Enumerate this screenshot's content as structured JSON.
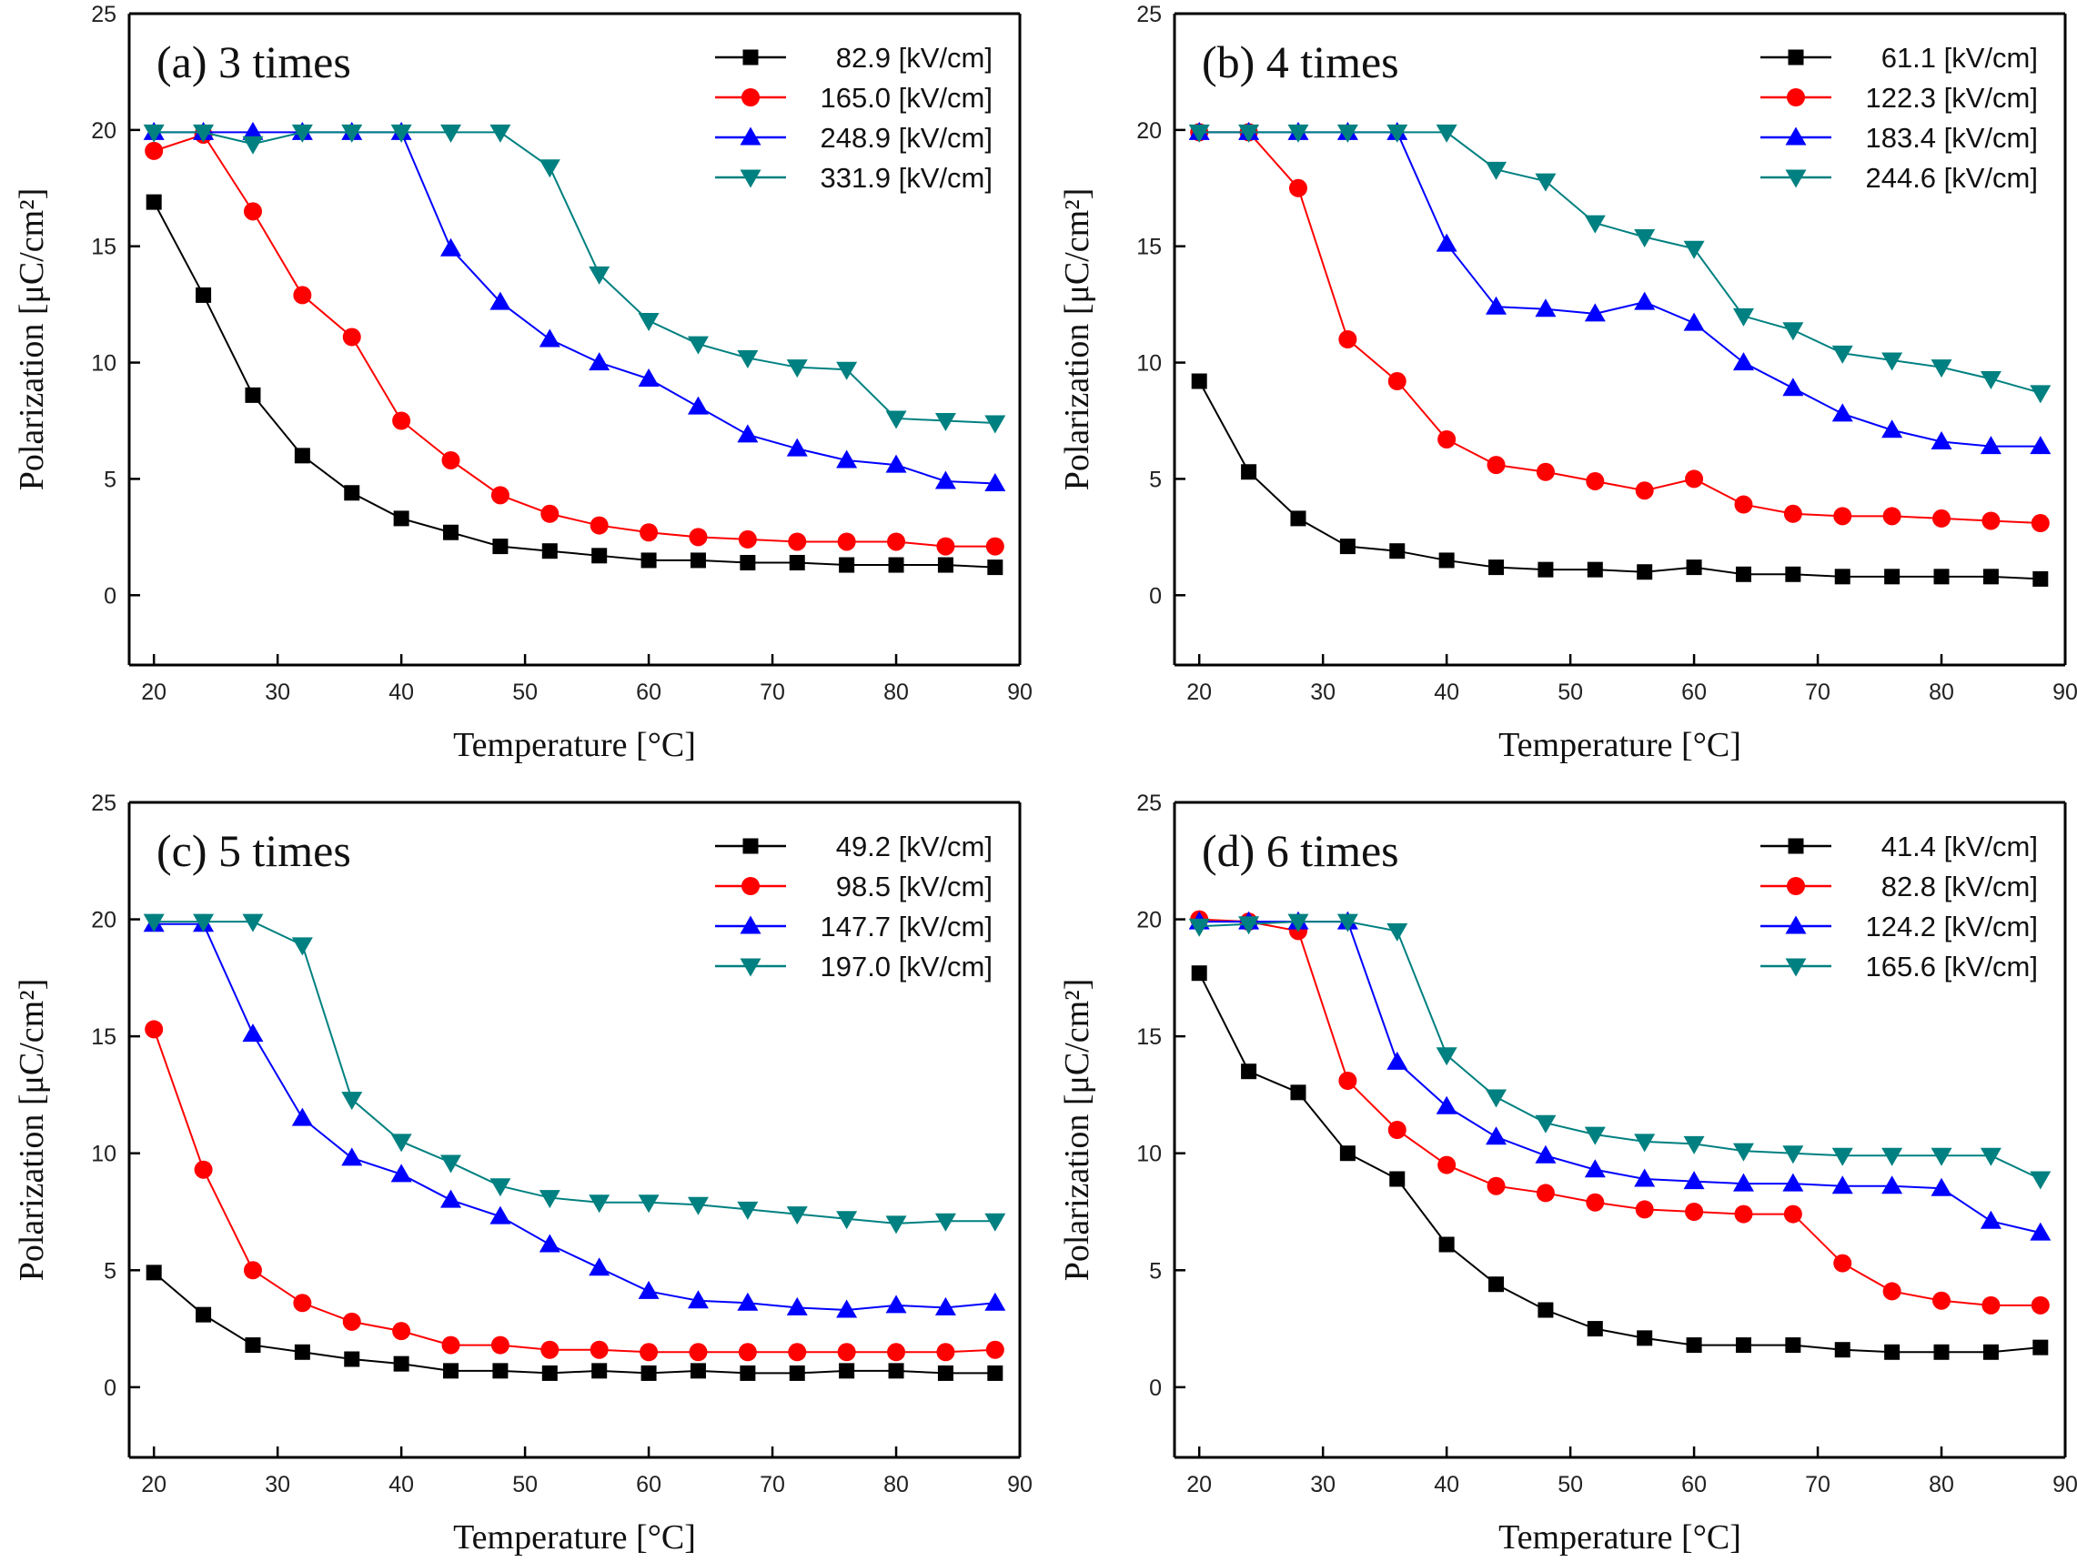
{
  "figure": {
    "legend_unit": "[kV/cm]"
  },
  "chart_data": [
    {
      "type": "line",
      "panel": "a",
      "title": "(a) 3 times",
      "xlabel": "Temperature [°C]",
      "ylabel": "Polarization [μC/cm²]",
      "xlim": [
        18,
        90
      ],
      "ylim": [
        -3,
        25
      ],
      "xticks": [
        20,
        30,
        40,
        50,
        60,
        70,
        80,
        90
      ],
      "yticks": [
        0,
        5,
        10,
        15,
        20,
        25
      ],
      "grid": false,
      "legend_position": "top-right",
      "x": [
        20,
        24,
        28,
        32,
        36,
        40,
        44,
        48,
        52,
        56,
        60,
        64,
        68,
        72,
        76,
        80,
        84,
        88
      ],
      "series": [
        {
          "name": "82.9 [kV/cm]",
          "marker": "square",
          "color": "#000000",
          "values": [
            16.9,
            12.9,
            8.6,
            6.0,
            4.4,
            3.3,
            2.7,
            2.1,
            1.9,
            1.7,
            1.5,
            1.5,
            1.4,
            1.4,
            1.3,
            1.3,
            1.3,
            1.2
          ]
        },
        {
          "name": "165.0 [kV/cm]",
          "marker": "circle",
          "color": "#ff0000",
          "values": [
            19.1,
            19.8,
            16.5,
            12.9,
            11.1,
            7.5,
            5.8,
            4.3,
            3.5,
            3.0,
            2.7,
            2.5,
            2.4,
            2.3,
            2.3,
            2.3,
            2.1,
            2.1
          ]
        },
        {
          "name": "248.9 [kV/cm]",
          "marker": "triangle-up",
          "color": "#0000ff",
          "values": [
            19.9,
            19.9,
            19.9,
            19.9,
            19.9,
            19.9,
            14.9,
            12.6,
            11.0,
            10.0,
            9.3,
            8.1,
            6.9,
            6.3,
            5.8,
            5.6,
            4.9,
            4.8
          ]
        },
        {
          "name": "331.9 [kV/cm]",
          "marker": "triangle-down",
          "color": "#008080",
          "values": [
            19.9,
            19.9,
            19.4,
            19.9,
            19.9,
            19.9,
            19.9,
            19.9,
            18.4,
            13.8,
            11.8,
            10.8,
            10.2,
            9.8,
            9.7,
            7.6,
            7.5,
            7.4
          ]
        }
      ]
    },
    {
      "type": "line",
      "panel": "b",
      "title": "(b) 4 times",
      "xlabel": "Temperature [°C]",
      "ylabel": "Polarization [μC/cm²]",
      "xlim": [
        18,
        90
      ],
      "ylim": [
        -3,
        25
      ],
      "xticks": [
        20,
        30,
        40,
        50,
        60,
        70,
        80,
        90
      ],
      "yticks": [
        0,
        5,
        10,
        15,
        20,
        25
      ],
      "grid": false,
      "legend_position": "top-right",
      "x": [
        20,
        24,
        28,
        32,
        36,
        40,
        44,
        48,
        52,
        56,
        60,
        64,
        68,
        72,
        76,
        80,
        84,
        88
      ],
      "series": [
        {
          "name": "61.1 [kV/cm]",
          "marker": "square",
          "color": "#000000",
          "values": [
            9.2,
            5.3,
            3.3,
            2.1,
            1.9,
            1.5,
            1.2,
            1.1,
            1.1,
            1.0,
            1.2,
            0.9,
            0.9,
            0.8,
            0.8,
            0.8,
            0.8,
            0.7
          ]
        },
        {
          "name": "122.3 [kV/cm]",
          "marker": "circle",
          "color": "#ff0000",
          "values": [
            19.9,
            19.9,
            17.5,
            11.0,
            9.2,
            6.7,
            5.6,
            5.3,
            4.9,
            4.5,
            5.0,
            3.9,
            3.5,
            3.4,
            3.4,
            3.3,
            3.2,
            3.1
          ]
        },
        {
          "name": "183.4 [kV/cm]",
          "marker": "triangle-up",
          "color": "#0000ff",
          "values": [
            19.9,
            19.9,
            19.9,
            19.9,
            19.9,
            15.1,
            12.4,
            12.3,
            12.1,
            12.6,
            11.7,
            10.0,
            8.9,
            7.8,
            7.1,
            6.6,
            6.4,
            6.4
          ]
        },
        {
          "name": "244.6 [kV/cm]",
          "marker": "triangle-down",
          "color": "#008080",
          "values": [
            19.9,
            19.9,
            19.9,
            19.9,
            19.9,
            19.9,
            18.3,
            17.8,
            16.0,
            15.4,
            14.9,
            12.0,
            11.4,
            10.4,
            10.1,
            9.8,
            9.3,
            8.7
          ]
        }
      ]
    },
    {
      "type": "line",
      "panel": "c",
      "title": "(c) 5 times",
      "xlabel": "Temperature [°C]",
      "ylabel": "Polarization [μC/cm²]",
      "xlim": [
        18,
        90
      ],
      "ylim": [
        -3,
        25
      ],
      "xticks": [
        20,
        30,
        40,
        50,
        60,
        70,
        80,
        90
      ],
      "yticks": [
        0,
        5,
        10,
        15,
        20,
        25
      ],
      "grid": false,
      "legend_position": "top-right",
      "x": [
        20,
        24,
        28,
        32,
        36,
        40,
        44,
        48,
        52,
        56,
        60,
        64,
        68,
        72,
        76,
        80,
        84,
        88
      ],
      "series": [
        {
          "name": "49.2 [kV/cm]",
          "marker": "square",
          "color": "#000000",
          "values": [
            4.9,
            3.1,
            1.8,
            1.5,
            1.2,
            1.0,
            0.7,
            0.7,
            0.6,
            0.7,
            0.6,
            0.7,
            0.6,
            0.6,
            0.7,
            0.7,
            0.6,
            0.6
          ]
        },
        {
          "name": "98.5 [kV/cm]",
          "marker": "circle",
          "color": "#ff0000",
          "values": [
            15.3,
            9.3,
            5.0,
            3.6,
            2.8,
            2.4,
            1.8,
            1.8,
            1.6,
            1.6,
            1.5,
            1.5,
            1.5,
            1.5,
            1.5,
            1.5,
            1.5,
            1.6
          ]
        },
        {
          "name": "147.7 [kV/cm]",
          "marker": "triangle-up",
          "color": "#0000ff",
          "values": [
            19.8,
            19.8,
            15.1,
            11.5,
            9.8,
            9.1,
            8.0,
            7.3,
            6.1,
            5.1,
            4.1,
            3.7,
            3.6,
            3.4,
            3.3,
            3.5,
            3.4,
            3.6
          ]
        },
        {
          "name": "197.0 [kV/cm]",
          "marker": "triangle-down",
          "color": "#008080",
          "values": [
            19.9,
            19.9,
            19.9,
            18.9,
            12.3,
            10.5,
            9.6,
            8.6,
            8.1,
            7.9,
            7.9,
            7.8,
            7.6,
            7.4,
            7.2,
            7.0,
            7.1,
            7.1
          ]
        }
      ]
    },
    {
      "type": "line",
      "panel": "d",
      "title": "(d) 6 times",
      "xlabel": "Temperature [°C]",
      "ylabel": "Polarization [μC/cm²]",
      "xlim": [
        18,
        90
      ],
      "ylim": [
        -3,
        25
      ],
      "xticks": [
        20,
        30,
        40,
        50,
        60,
        70,
        80,
        90
      ],
      "yticks": [
        0,
        5,
        10,
        15,
        20,
        25
      ],
      "grid": false,
      "legend_position": "top-right",
      "x": [
        20,
        24,
        28,
        32,
        36,
        40,
        44,
        48,
        52,
        56,
        60,
        64,
        68,
        72,
        76,
        80,
        84,
        88
      ],
      "series": [
        {
          "name": "41.4 [kV/cm]",
          "marker": "square",
          "color": "#000000",
          "values": [
            17.7,
            13.5,
            12.6,
            10.0,
            8.9,
            6.1,
            4.4,
            3.3,
            2.5,
            2.1,
            1.8,
            1.8,
            1.8,
            1.6,
            1.5,
            1.5,
            1.5,
            1.7
          ]
        },
        {
          "name": "82.8 [kV/cm]",
          "marker": "circle",
          "color": "#ff0000",
          "values": [
            20.0,
            19.9,
            19.5,
            13.1,
            11.0,
            9.5,
            8.6,
            8.3,
            7.9,
            7.6,
            7.5,
            7.4,
            7.4,
            5.3,
            4.1,
            3.7,
            3.5,
            3.5
          ]
        },
        {
          "name": "124.2 [kV/cm]",
          "marker": "triangle-up",
          "color": "#0000ff",
          "values": [
            19.9,
            19.9,
            19.9,
            19.9,
            13.9,
            12.0,
            10.7,
            9.9,
            9.3,
            8.9,
            8.8,
            8.7,
            8.7,
            8.6,
            8.6,
            8.5,
            7.1,
            6.6
          ]
        },
        {
          "name": "165.6 [kV/cm]",
          "marker": "triangle-down",
          "color": "#008080",
          "values": [
            19.7,
            19.8,
            19.9,
            19.9,
            19.5,
            14.2,
            12.4,
            11.3,
            10.8,
            10.5,
            10.4,
            10.1,
            10.0,
            9.9,
            9.9,
            9.9,
            9.9,
            8.9
          ]
        }
      ]
    }
  ]
}
